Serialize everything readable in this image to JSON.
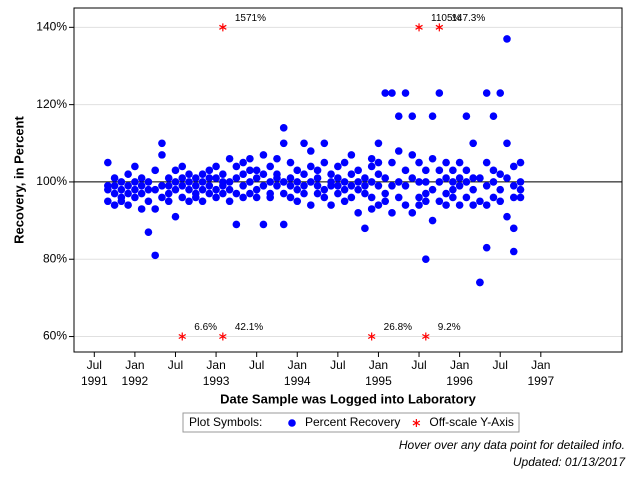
{
  "chart_data": {
    "type": "scatter",
    "ylabel": "Recovery, in Percent",
    "xlabel": "Date Sample was Logged into Laboratory",
    "xlim": [
      "1991-04",
      "1998-01"
    ],
    "ylim": [
      56,
      145
    ],
    "yticks": [
      {
        "value": 60,
        "label": "60%"
      },
      {
        "value": 80,
        "label": "80%"
      },
      {
        "value": 100,
        "label": "100%"
      },
      {
        "value": 120,
        "label": "120%"
      },
      {
        "value": 140,
        "label": "140%"
      }
    ],
    "xticks": [
      {
        "value": "1991-07",
        "label": [
          "Jul",
          "1991"
        ]
      },
      {
        "value": "1992-01",
        "label": [
          "Jan",
          "1992"
        ]
      },
      {
        "value": "1992-07",
        "label": [
          "Jul"
        ]
      },
      {
        "value": "1993-01",
        "label": [
          "Jan",
          "1993"
        ]
      },
      {
        "value": "1993-07",
        "label": [
          "Jul"
        ]
      },
      {
        "value": "1994-01",
        "label": [
          "Jan",
          "1994"
        ]
      },
      {
        "value": "1994-07",
        "label": [
          "Jul"
        ]
      },
      {
        "value": "1995-01",
        "label": [
          "Jan",
          "1995"
        ]
      },
      {
        "value": "1995-07",
        "label": [
          "Jul"
        ]
      },
      {
        "value": "1996-01",
        "label": [
          "Jan",
          "1996"
        ]
      },
      {
        "value": "1996-07",
        "label": [
          "Jul"
        ]
      },
      {
        "value": "1997-01",
        "label": [
          "Jan",
          "1997"
        ]
      }
    ],
    "grid": true,
    "reference_line": 100,
    "legend_title": "Plot Symbols:",
    "series": [
      {
        "name": "Percent Recovery",
        "color": "#0000ff",
        "marker": "circle",
        "x": [
          "1991-09",
          "1991-09",
          "1991-09",
          "1991-09",
          "1991-10",
          "1991-10",
          "1991-10",
          "1991-10",
          "1991-11",
          "1991-11",
          "1991-11",
          "1991-11",
          "1991-12",
          "1991-12",
          "1991-12",
          "1991-12",
          "1992-01",
          "1992-01",
          "1992-01",
          "1992-01",
          "1992-02",
          "1992-02",
          "1992-02",
          "1992-02",
          "1992-03",
          "1992-03",
          "1992-03",
          "1992-03",
          "1992-04",
          "1992-04",
          "1992-04",
          "1992-04",
          "1992-05",
          "1992-05",
          "1992-05",
          "1992-05",
          "1992-06",
          "1992-06",
          "1992-06",
          "1992-06",
          "1992-07",
          "1992-07",
          "1992-07",
          "1992-07",
          "1992-08",
          "1992-08",
          "1992-08",
          "1992-08",
          "1992-09",
          "1992-09",
          "1992-09",
          "1992-09",
          "1992-10",
          "1992-10",
          "1992-10",
          "1992-10",
          "1992-11",
          "1992-11",
          "1992-11",
          "1992-11",
          "1992-12",
          "1992-12",
          "1992-12",
          "1992-12",
          "1993-01",
          "1993-01",
          "1993-01",
          "1993-01",
          "1993-02",
          "1993-02",
          "1993-02",
          "1993-02",
          "1993-03",
          "1993-03",
          "1993-03",
          "1993-03",
          "1993-04",
          "1993-04",
          "1993-04",
          "1993-04",
          "1993-05",
          "1993-05",
          "1993-05",
          "1993-05",
          "1993-06",
          "1993-06",
          "1993-06",
          "1993-06",
          "1993-07",
          "1993-07",
          "1993-07",
          "1993-07",
          "1993-08",
          "1993-08",
          "1993-08",
          "1993-08",
          "1993-09",
          "1993-09",
          "1993-09",
          "1993-09",
          "1993-10",
          "1993-10",
          "1993-10",
          "1993-10",
          "1993-11",
          "1993-11",
          "1993-11",
          "1993-11",
          "1993-11",
          "1993-12",
          "1993-12",
          "1993-12",
          "1993-12",
          "1994-01",
          "1994-01",
          "1994-01",
          "1994-01",
          "1994-02",
          "1994-02",
          "1994-02",
          "1994-02",
          "1994-03",
          "1994-03",
          "1994-03",
          "1994-03",
          "1994-04",
          "1994-04",
          "1994-04",
          "1994-04",
          "1994-05",
          "1994-05",
          "1994-05",
          "1994-05",
          "1994-06",
          "1994-06",
          "1994-06",
          "1994-06",
          "1994-07",
          "1994-07",
          "1994-07",
          "1994-07",
          "1994-08",
          "1994-08",
          "1994-08",
          "1994-08",
          "1994-09",
          "1994-09",
          "1994-09",
          "1994-09",
          "1994-10",
          "1994-10",
          "1994-10",
          "1994-10",
          "1994-11",
          "1994-11",
          "1994-11",
          "1994-11",
          "1994-12",
          "1994-12",
          "1994-12",
          "1994-12",
          "1994-12",
          "1995-01",
          "1995-01",
          "1995-01",
          "1995-01",
          "1995-01",
          "1995-02",
          "1995-02",
          "1995-02",
          "1995-02",
          "1995-03",
          "1995-03",
          "1995-03",
          "1995-03",
          "1995-04",
          "1995-04",
          "1995-04",
          "1995-04",
          "1995-05",
          "1995-05",
          "1995-05",
          "1995-05",
          "1995-06",
          "1995-06",
          "1995-06",
          "1995-06",
          "1995-07",
          "1995-07",
          "1995-07",
          "1995-07",
          "1995-08",
          "1995-08",
          "1995-08",
          "1995-08",
          "1995-08",
          "1995-09",
          "1995-09",
          "1995-09",
          "1995-09",
          "1995-10",
          "1995-10",
          "1995-10",
          "1995-10",
          "1995-11",
          "1995-11",
          "1995-11",
          "1995-11",
          "1995-12",
          "1995-12",
          "1995-12",
          "1995-12",
          "1996-01",
          "1996-01",
          "1996-01",
          "1996-01",
          "1996-02",
          "1996-02",
          "1996-02",
          "1996-02",
          "1996-03",
          "1996-03",
          "1996-03",
          "1996-03",
          "1996-04",
          "1996-04",
          "1996-04",
          "1996-04",
          "1996-05",
          "1996-05",
          "1996-05",
          "1996-05",
          "1996-05",
          "1996-06",
          "1996-06",
          "1996-06",
          "1996-06",
          "1996-07",
          "1996-07",
          "1996-07",
          "1996-07",
          "1996-08",
          "1996-08",
          "1996-08",
          "1996-08",
          "1996-09",
          "1996-09",
          "1996-09",
          "1996-09",
          "1996-09",
          "1996-10",
          "1996-10",
          "1996-10",
          "1996-10"
        ],
        "values": [
          95,
          99,
          105,
          98,
          97,
          94,
          101,
          99,
          96,
          100,
          98,
          95,
          102,
          97,
          99,
          94,
          104,
          98,
          96,
          100,
          93,
          99,
          97,
          101,
          87,
          95,
          100,
          98,
          81,
          93,
          98,
          103,
          107,
          110,
          96,
          99,
          95,
          99,
          101,
          97,
          91,
          98,
          103,
          100,
          96,
          99,
          101,
          104,
          95,
          100,
          98,
          102,
          97,
          101,
          99,
          96,
          100,
          102,
          98,
          95,
          103,
          99,
          101,
          97,
          104,
          98,
          96,
          101,
          100,
          97,
          102,
          99,
          106,
          95,
          100,
          98,
          89,
          101,
          97,
          104,
          105,
          99,
          96,
          102,
          103,
          97,
          100,
          106,
          98,
          101,
          96,
          103,
          107,
          89,
          99,
          102,
          100,
          104,
          97,
          96,
          106,
          101,
          99,
          102,
          89,
          114,
          110,
          100,
          97,
          105,
          101,
          96,
          99,
          103,
          98,
          95,
          100,
          110,
          102,
          97,
          99,
          94,
          100,
          104,
          108,
          101,
          97,
          103,
          99,
          110,
          105,
          98,
          96,
          100,
          102,
          94,
          99,
          97,
          101,
          104,
          99,
          105,
          98,
          95,
          100,
          107,
          99,
          96,
          102,
          92,
          100,
          98,
          103,
          88,
          99,
          101,
          97,
          106,
          100,
          96,
          93,
          104,
          110,
          94,
          99,
          102,
          105,
          123,
          101,
          97,
          95,
          123,
          105,
          99,
          92,
          117,
          108,
          100,
          96,
          123,
          103,
          99,
          94,
          117,
          107,
          101,
          92,
          105,
          96,
          100,
          94,
          100,
          80,
          103,
          97,
          95,
          117,
          90,
          106,
          98,
          123,
          100,
          95,
          103,
          94,
          101,
          97,
          105,
          96,
          100,
          103,
          98,
          105,
          99,
          94,
          101,
          117,
          103,
          96,
          100,
          110,
          98,
          94,
          101,
          74,
          74,
          95,
          101,
          123,
          83,
          105,
          99,
          94,
          117,
          103,
          96,
          100,
          123,
          102,
          95,
          98,
          137,
          110,
          91,
          101,
          82,
          88,
          99,
          104,
          96,
          105,
          98,
          96,
          100
        ]
      },
      {
        "name": "Off-scale Y-Axis",
        "color": "#ff0000",
        "marker": "asterisk",
        "x": [
          "1993-02",
          "1995-07",
          "1995-10",
          "1992-08",
          "1993-02",
          "1994-12",
          "1995-08"
        ],
        "values": [
          140,
          140,
          140,
          60,
          60,
          60,
          60
        ],
        "point_labels": [
          "1571%",
          "1105%",
          "147.3%",
          "6.6%",
          "42.1%",
          "26.8%",
          "9.2%"
        ]
      }
    ],
    "footnotes": [
      "Hover over any data point for detailed info.",
      "Updated: 01/13/2017"
    ]
  }
}
